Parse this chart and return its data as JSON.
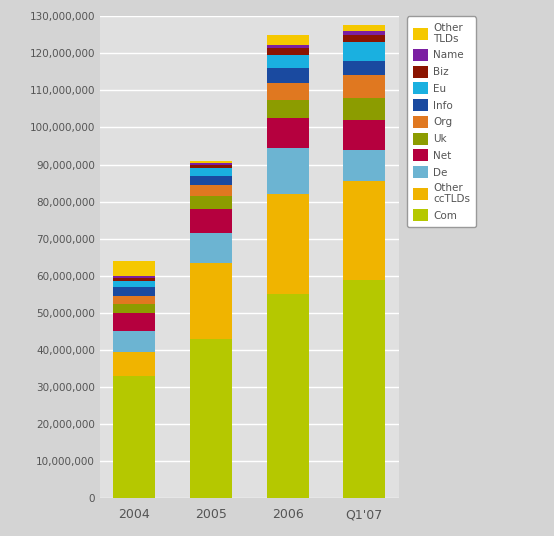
{
  "categories": [
    "2004",
    "2005",
    "2006",
    "Q1'07"
  ],
  "series": [
    {
      "label": "Com",
      "color": "#b5c800",
      "values": [
        33000000,
        43000000,
        55000000,
        59000000
      ]
    },
    {
      "label": "Other\nccTLDs",
      "color": "#f0b400",
      "values": [
        6500000,
        20500000,
        27000000,
        26500000
      ]
    },
    {
      "label": "De",
      "color": "#6cb4d2",
      "values": [
        5500000,
        8000000,
        12500000,
        8500000
      ]
    },
    {
      "label": "Net",
      "color": "#b5003e",
      "values": [
        5000000,
        6500000,
        8000000,
        8000000
      ]
    },
    {
      "label": "Uk",
      "color": "#8c9c00",
      "values": [
        2500000,
        3500000,
        5000000,
        6000000
      ]
    },
    {
      "label": "Org",
      "color": "#e07820",
      "values": [
        2000000,
        3000000,
        4500000,
        6000000
      ]
    },
    {
      "label": "Info",
      "color": "#1a4aa0",
      "values": [
        2500000,
        2500000,
        4000000,
        4000000
      ]
    },
    {
      "label": "Eu",
      "color": "#1ab0e0",
      "values": [
        1500000,
        2000000,
        3500000,
        5000000
      ]
    },
    {
      "label": "Biz",
      "color": "#8b1400",
      "values": [
        1000000,
        1000000,
        2000000,
        2000000
      ]
    },
    {
      "label": "Name",
      "color": "#7b1fa2",
      "values": [
        500000,
        500000,
        800000,
        1000000
      ]
    },
    {
      "label": "Other\nTLDs",
      "color": "#f5c800",
      "values": [
        4000000,
        500000,
        2500000,
        1500000
      ]
    }
  ],
  "ylim": [
    0,
    130000000
  ],
  "ytick_step": 10000000,
  "background_color": "#d4d4d4",
  "plot_background": "#e0e0e0",
  "bar_width": 0.55,
  "figsize": [
    5.54,
    5.36
  ],
  "dpi": 100
}
